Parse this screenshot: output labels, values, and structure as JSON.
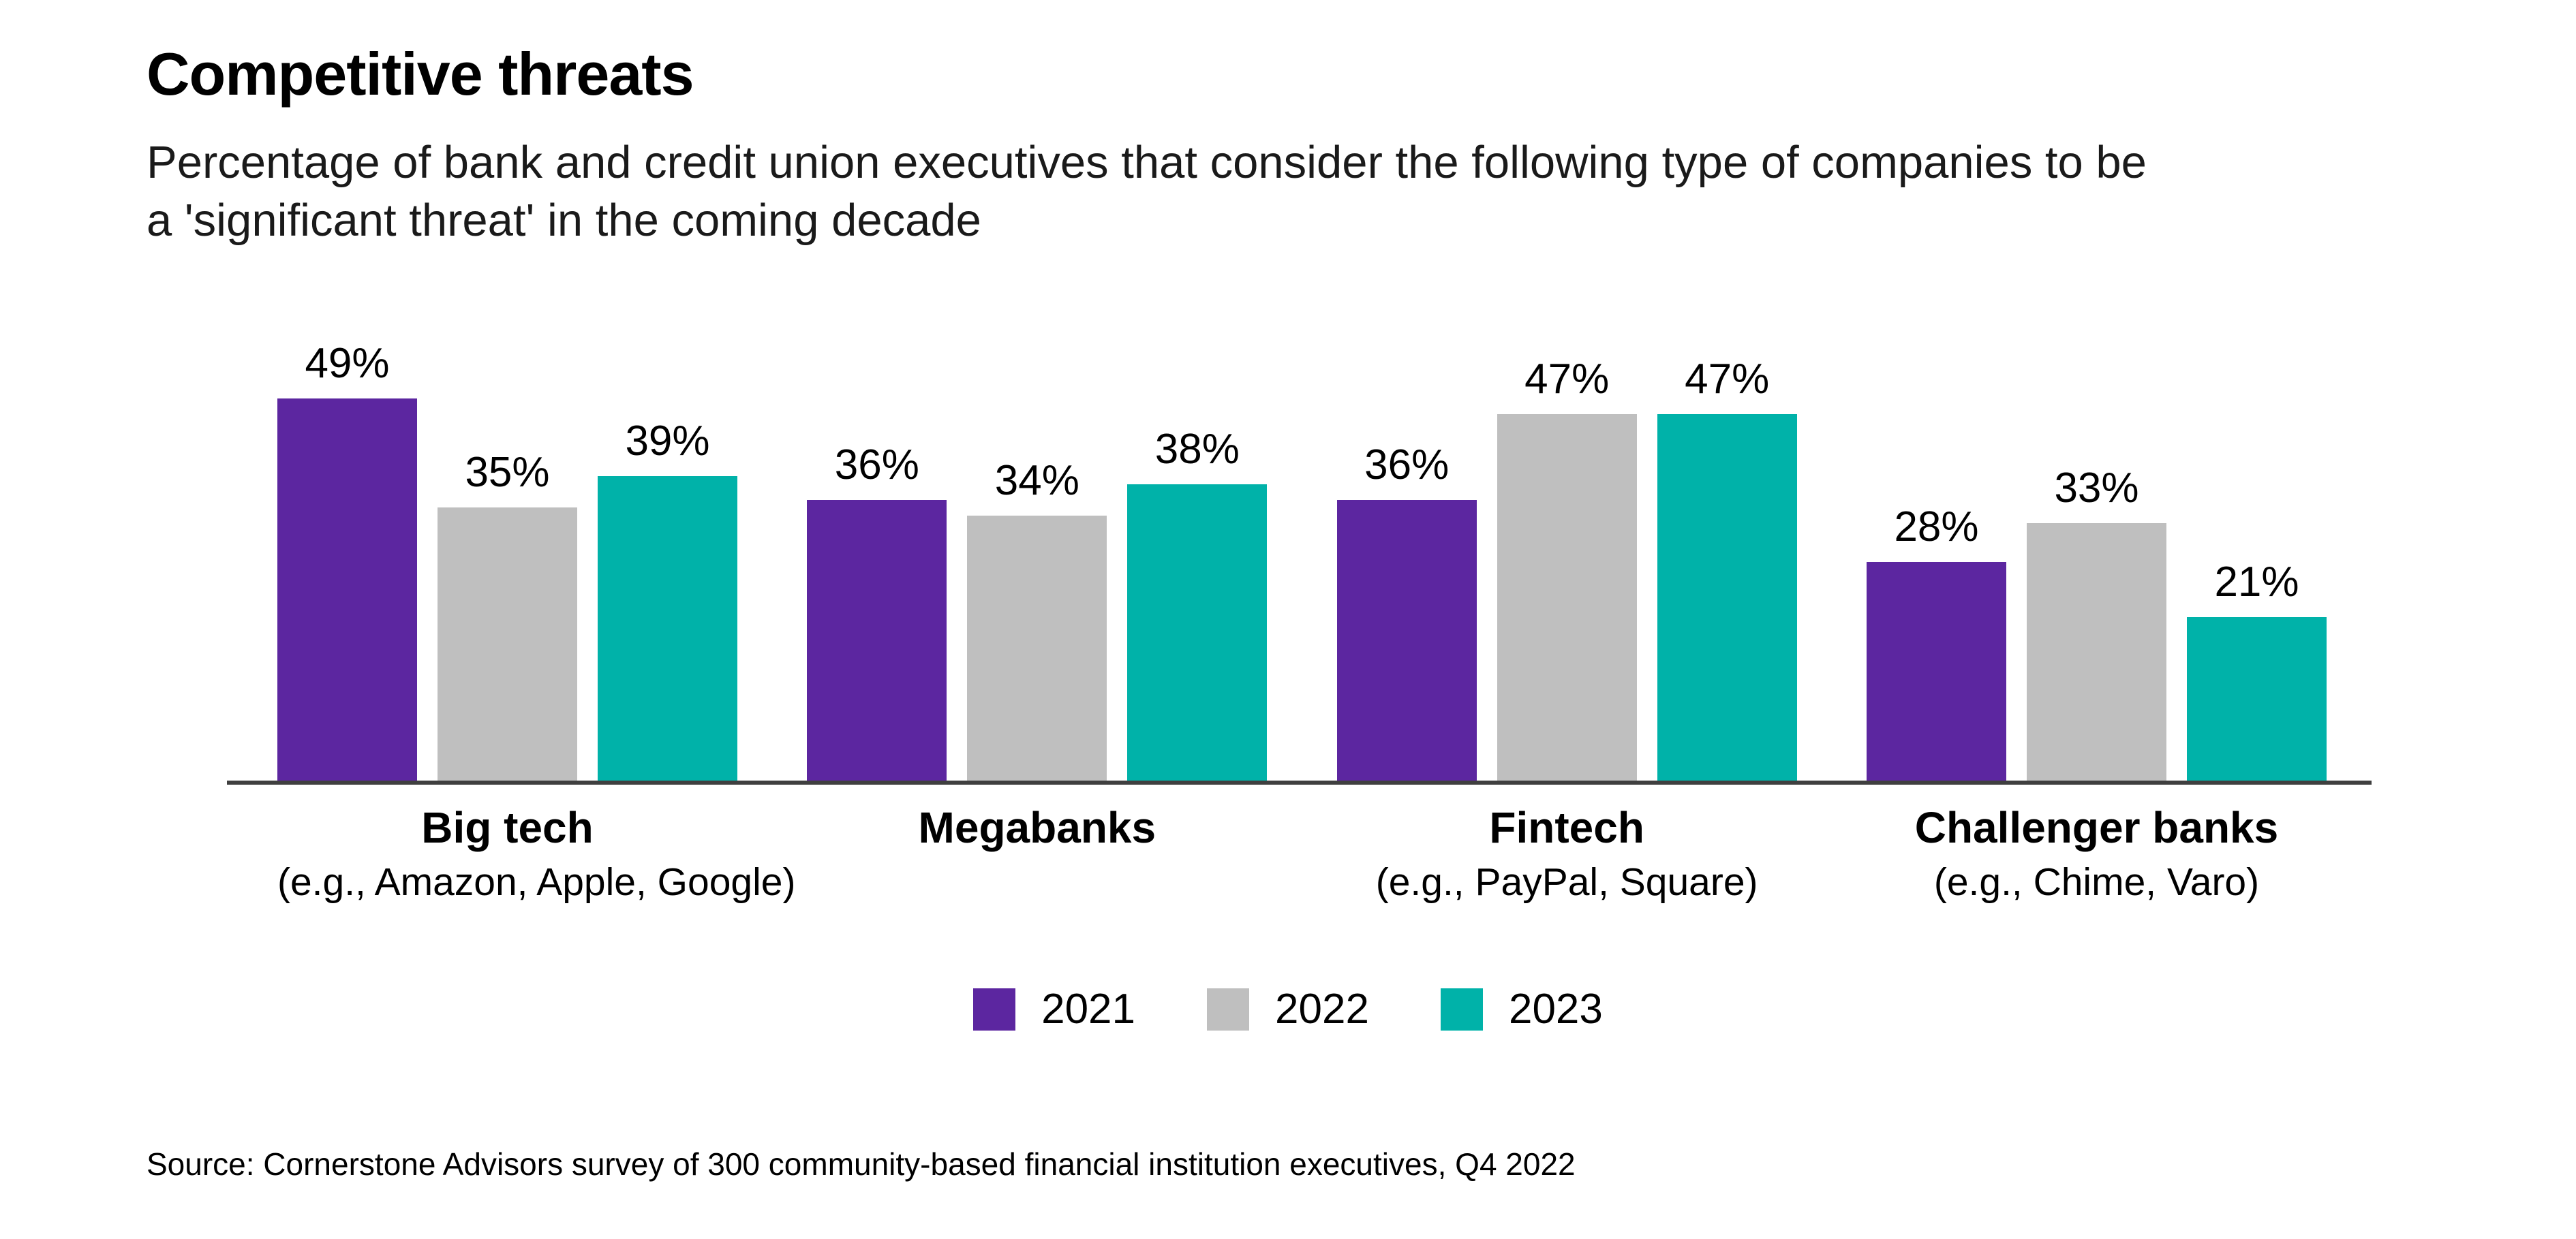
{
  "header": {
    "title": "Competitive threats",
    "subtitle_lines": [
      "Percentage of bank and credit union executives that consider the following type of companies to be",
      "a 'significant threat' in the coming decade"
    ]
  },
  "chart_data": {
    "type": "bar",
    "title": "Competitive threats",
    "subtitle": "Percentage of bank and credit union executives that consider the following type of companies to be a 'significant threat' in the coming decade",
    "categories": [
      "Big tech",
      "Megabanks",
      "Fintech",
      "Challenger banks"
    ],
    "category_sublabels": [
      "(e.g., Amazon, Apple, Google)",
      "",
      "(e.g., PayPal, Square)",
      "(e.g., Chime, Varo)"
    ],
    "series": [
      {
        "name": "2021",
        "color": "#5C26A0",
        "values": [
          49,
          36,
          36,
          28
        ]
      },
      {
        "name": "2022",
        "color": "#BFBFBF",
        "values": [
          35,
          34,
          47,
          33
        ]
      },
      {
        "name": "2023",
        "color": "#00B2A9",
        "values": [
          39,
          38,
          47,
          21
        ]
      }
    ],
    "value_suffix": "%",
    "data_labels": true,
    "ylim": [
      0,
      55
    ],
    "grid": false,
    "axis_color": "#3f3f3f",
    "legend_position": "bottom"
  },
  "source": {
    "text": "Source: Cornerstone Advisors survey of 300 community-based financial institution executives, Q4 2022"
  }
}
